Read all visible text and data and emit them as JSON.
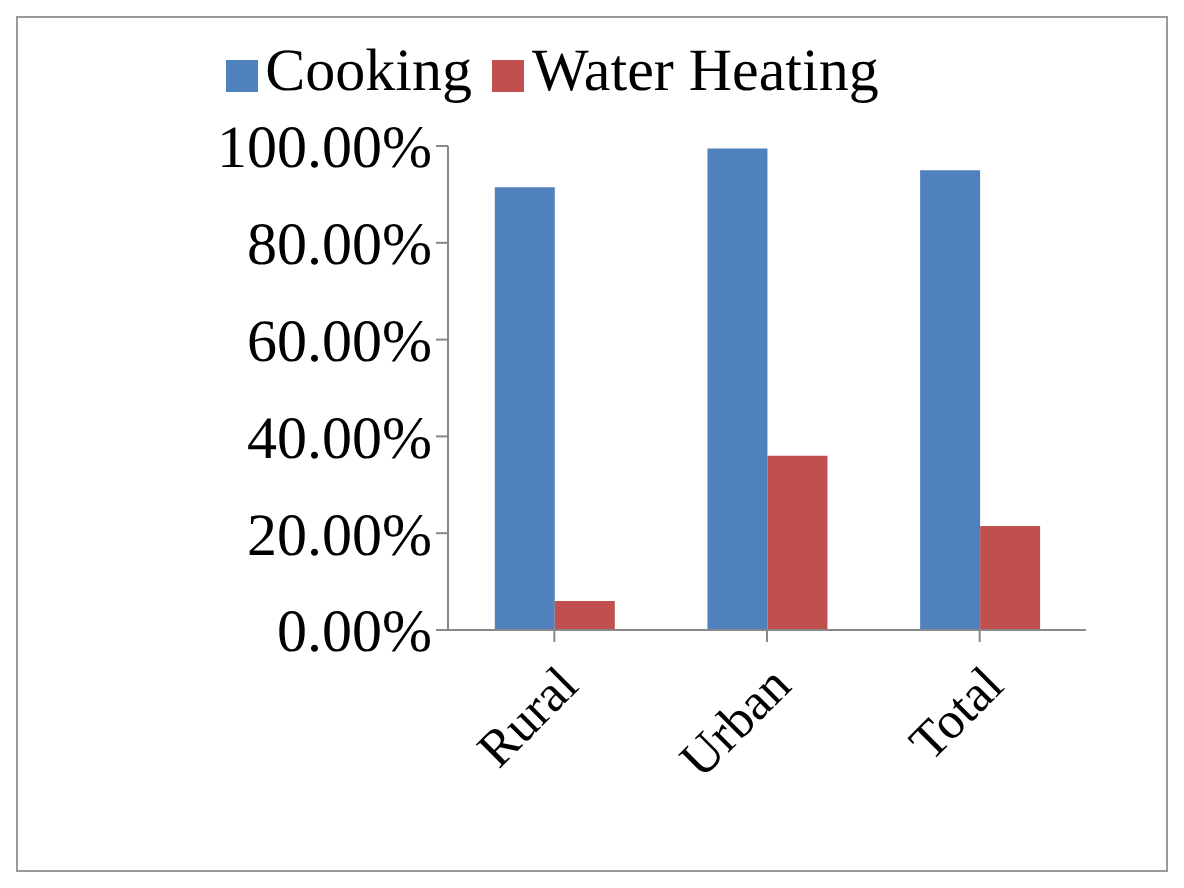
{
  "chart_data": {
    "type": "bar",
    "categories": [
      "Rural",
      "Urban",
      "Total"
    ],
    "series": [
      {
        "name": "Cooking",
        "color": "#4f81bd",
        "values": [
          91.5,
          99.5,
          95
        ]
      },
      {
        "name": "Water Heating",
        "color": "#c0504d",
        "values": [
          6,
          36,
          21.5
        ]
      }
    ],
    "ylim": [
      0,
      100
    ],
    "yticks": [
      {
        "value": 0,
        "label": "0.00%"
      },
      {
        "value": 20,
        "label": "20.00%"
      },
      {
        "value": 40,
        "label": "40.00%"
      },
      {
        "value": 60,
        "label": "60.00%"
      },
      {
        "value": 80,
        "label": "80.00%"
      },
      {
        "value": 100,
        "label": "100.00%"
      }
    ],
    "grid": false,
    "legend": "top"
  }
}
